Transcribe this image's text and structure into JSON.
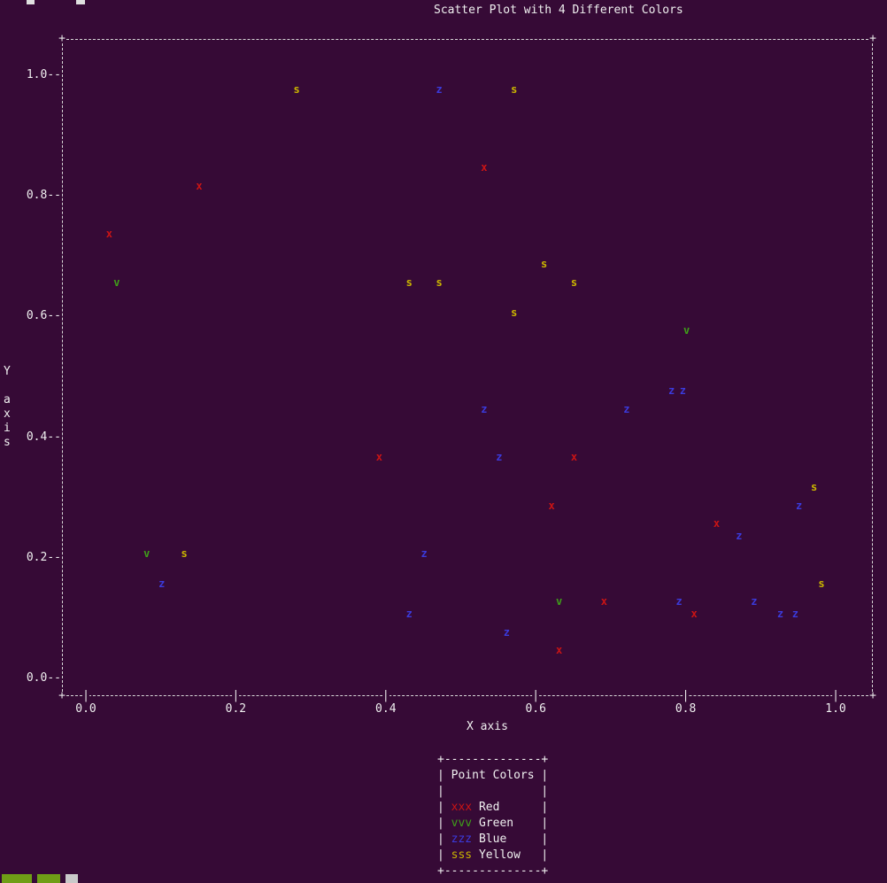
{
  "chart_data": {
    "type": "scatter",
    "title": "Scatter Plot with 4 Different Colors",
    "xlabel": "X axis",
    "ylabel": "Y axis",
    "xlim": [
      0.0,
      1.0
    ],
    "ylim": [
      0.0,
      1.0
    ],
    "x_ticks": [
      0.0,
      0.2,
      0.4,
      0.6,
      0.8,
      1.0
    ],
    "y_ticks": [
      0.0,
      0.2,
      0.4,
      0.6,
      0.8,
      1.0
    ],
    "grid": false,
    "legend_position": "bottom-center",
    "series": [
      {
        "name": "Red",
        "marker": "x",
        "color": "#cc1414",
        "points": [
          [
            0.15,
            0.82
          ],
          [
            0.03,
            0.74
          ],
          [
            0.53,
            0.85
          ],
          [
            0.39,
            0.37
          ],
          [
            0.65,
            0.37
          ],
          [
            0.62,
            0.29
          ],
          [
            0.84,
            0.26
          ],
          [
            0.69,
            0.13
          ],
          [
            0.81,
            0.11
          ],
          [
            0.63,
            0.05
          ]
        ]
      },
      {
        "name": "Green",
        "marker": "v",
        "color": "#3f9e1a",
        "points": [
          [
            0.04,
            0.66
          ],
          [
            0.8,
            0.58
          ],
          [
            0.08,
            0.21
          ],
          [
            0.63,
            0.13
          ]
        ]
      },
      {
        "name": "Blue",
        "marker": "z",
        "color": "#3b3bdd",
        "points": [
          [
            0.47,
            0.98
          ],
          [
            0.78,
            0.48
          ],
          [
            0.795,
            0.48
          ],
          [
            0.53,
            0.45
          ],
          [
            0.72,
            0.45
          ],
          [
            0.55,
            0.37
          ],
          [
            0.95,
            0.29
          ],
          [
            0.87,
            0.24
          ],
          [
            0.45,
            0.21
          ],
          [
            0.1,
            0.16
          ],
          [
            0.79,
            0.13
          ],
          [
            0.89,
            0.13
          ],
          [
            0.925,
            0.11
          ],
          [
            0.945,
            0.11
          ],
          [
            0.43,
            0.11
          ],
          [
            0.56,
            0.08
          ]
        ]
      },
      {
        "name": "Yellow",
        "marker": "s",
        "color": "#c9b400",
        "points": [
          [
            0.28,
            0.98
          ],
          [
            0.57,
            0.98
          ],
          [
            0.61,
            0.69
          ],
          [
            0.43,
            0.66
          ],
          [
            0.47,
            0.66
          ],
          [
            0.65,
            0.66
          ],
          [
            0.57,
            0.61
          ],
          [
            0.97,
            0.32
          ],
          [
            0.13,
            0.21
          ],
          [
            0.98,
            0.16
          ]
        ]
      }
    ]
  },
  "legend": {
    "title": "Point Colors"
  },
  "colors": {
    "background": "#360a36",
    "foreground": "#e8e8e8"
  }
}
